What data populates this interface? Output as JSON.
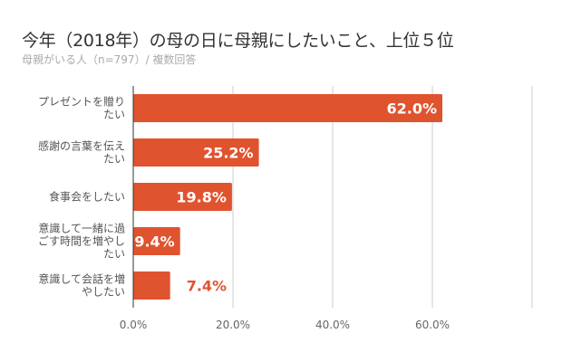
{
  "chart_data": {
    "type": "bar",
    "orientation": "horizontal",
    "title": "今年（2018年）の母の日に母親にしたいこと、上位５位",
    "subtitle": "母親がいる人（n=797）/ 複数回答",
    "categories": [
      [
        "プレゼントを贈り",
        "たい"
      ],
      [
        "感謝の言葉を伝え",
        "たい"
      ],
      [
        "食事会をしたい"
      ],
      [
        "意識して一緒に過",
        "ごす時間を増やし",
        "たい"
      ],
      [
        "意識して会話を増",
        "やしたい"
      ]
    ],
    "values": [
      62.0,
      25.2,
      19.8,
      9.4,
      7.4
    ],
    "data_labels": [
      "62.0%",
      "25.2%",
      "19.8%",
      "9.4%",
      "7.4%"
    ],
    "xlim": [
      0,
      80
    ],
    "xticks": [
      "0.0%",
      "20.0%",
      "40.0%",
      "60.0%"
    ],
    "xlabel": "",
    "ylabel": "",
    "grid": true,
    "legend": "none",
    "bar_color": "#e0532f",
    "label_inside_color": "#ffffff"
  }
}
